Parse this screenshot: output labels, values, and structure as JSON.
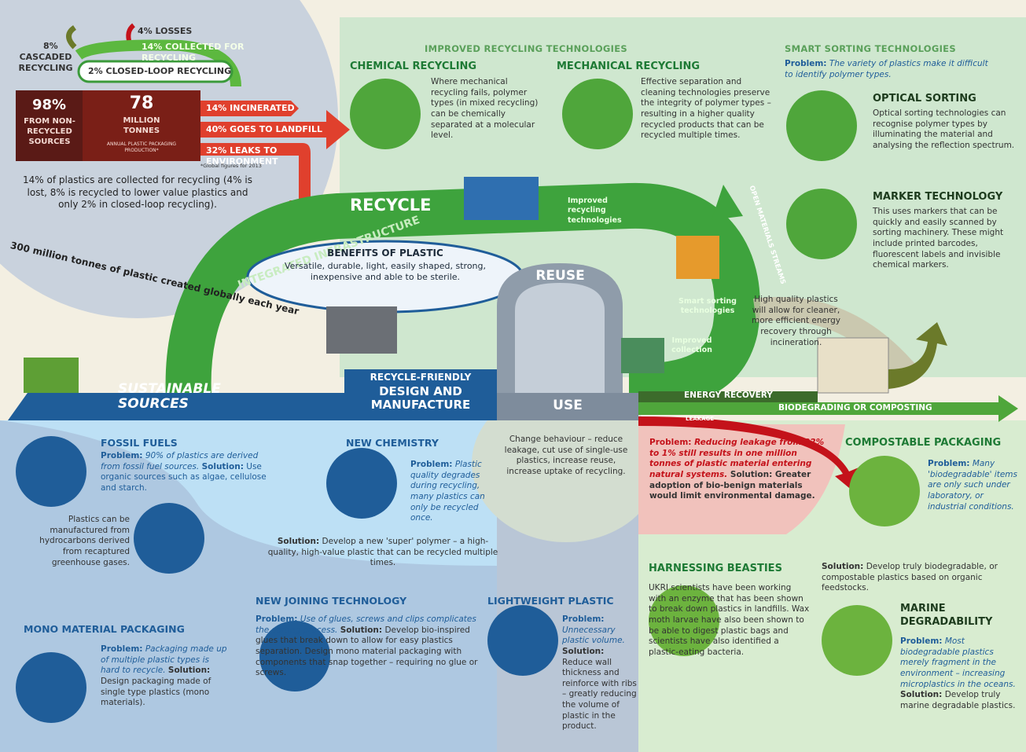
{
  "labels": {
    "problem": "Problem:",
    "solution": "Solution:"
  },
  "stats": {
    "losses": "4% LOSSES",
    "cascaded_pct": "8%",
    "cascaded_label": "CASCADED RECYCLING",
    "collected": "14% COLLECTED FOR RECYCLING",
    "closed_loop": "2% CLOSED-LOOP RECYCLING",
    "non_recycled_pct": "98%",
    "non_recycled_label": "FROM NON-RECYCLED SOURCES",
    "tonnes_value": "78",
    "tonnes_label": "MILLION TONNES",
    "tonnes_note": "ANNUAL PLASTIC PACKAGING PRODUCTION*",
    "incinerated": "14% INCINERATED",
    "landfill": "40% GOES TO LANDFILL",
    "leaks": "32% LEAKS TO ENVIRONMENT",
    "footnote": "*Global figures for 2013",
    "summary": "14% of plastics are collected for recycling (4% is lost, 8% is recycled to lower value plastics and only 2% in closed-loop recycling).",
    "created": "300 million tonnes of plastic created globally each year"
  },
  "technologies": {
    "title": "IMPROVED RECYCLING TECHNOLOGIES",
    "chemical": {
      "title": "CHEMICAL RECYCLING",
      "text": "Where mechanical recycling fails, polymer types (in mixed recycling) can be chemically separated at a molecular level."
    },
    "mechanical": {
      "title": "MECHANICAL RECYCLING",
      "text": "Effective separation and cleaning technologies preserve the integrity of polymer types – resulting in a higher quality recycled products that can be recycled multiple times."
    },
    "smart_sorting": {
      "title": "SMART SORTING TECHNOLOGIES",
      "problem": "The variety of plastics make it difficult to identify polymer types."
    },
    "optical": {
      "title": "OPTICAL SORTING",
      "text": "Optical sorting technologies can recognise polymer types by illuminating the material and analysing the reflection spectrum."
    },
    "marker": {
      "title": "MARKER TECHNOLOGY",
      "text": "This uses markers that can be quickly and easily scanned by sorting machinery. These might include printed barcodes, fluorescent labels and invisible chemical markers."
    }
  },
  "loop": {
    "recycle": "RECYCLE",
    "infrastructure": "INTEGRATED INFRASTRUCTURE",
    "improved_recycling": "Improved recycling technologies",
    "open_streams": "OPEN MATERIALS STREAMS",
    "smart_sorting": "Smart sorting technologies",
    "improved_collection": "Improved collection",
    "reuse": "REUSE",
    "benefits_title": "BENEFITS OF PLASTIC",
    "benefits_text": "Versatile, durable, light, easily shaped, strong, inexpensive and able to be sterile.",
    "energy_note": "High quality plastics will allow for cleaner, more efficient energy recovery through incineration."
  },
  "band": {
    "sustainable": "SUSTAINABLE SOURCES",
    "design_1": "RECYCLE-FRIENDLY",
    "design_2": "DESIGN AND MANUFACTURE",
    "use": "USE",
    "energy_recovery": "ENERGY RECOVERY",
    "biodegrading": "BIODEGRADING OR COMPOSTING",
    "leakage": "LEAKAGE"
  },
  "design": {
    "fossil": {
      "title": "FOSSIL FUELS",
      "problem": "90% of plastics are derived from fossil fuel sources.",
      "solution": "Use organic sources such as algae, cellulose and starch."
    },
    "hydrocarbons": "Plastics can be manufactured from hydrocarbons derived from recaptured greenhouse gases.",
    "chemistry": {
      "title": "NEW CHEMISTRY",
      "problem": "Plastic quality degrades during recycling, many plastics can only be recycled once.",
      "solution": "Develop a new 'super' polymer – a high-quality, high-value plastic that can be recycled multiple times."
    },
    "mono": {
      "title": "MONO MATERIAL PACKAGING",
      "problem": "Packaging made up of multiple plastic types is hard to recycle.",
      "solution": "Design packaging made of single type plastics (mono materials)."
    },
    "joining": {
      "title": "NEW JOINING TECHNOLOGY",
      "problem": "Use of glues, screws and clips complicates the sorting process.",
      "solution": "Develop bio-inspired glues that break down to allow for easy plastics separation. Design mono material packaging with components that snap together – requiring no glue or screws."
    },
    "lightweight": {
      "title": "LIGHTWEIGHT PLASTIC",
      "problem": "Unnecessary plastic volume.",
      "solution": "Reduce wall thickness and reinforce with ribs – greatly reducing the volume of plastic in the product."
    }
  },
  "use": {
    "behaviour": "Change behaviour – reduce leakage, cut use of single-use plastics, increase reuse, increase uptake of recycling."
  },
  "end_of_life": {
    "leakage": {
      "problem": "Reducing leakage from 32% to 1% still results in one million tonnes of plastic material entering natural systems.",
      "solution": "Greater adoption of bio-benign materials would limit environmental damage."
    },
    "compostable": {
      "title": "COMPOSTABLE PACKAGING",
      "problem": "Many 'biodegradable' items are only such under laboratory, or industrial conditions.",
      "solution": "Develop truly biodegradable, or compostable plastics based on organic feedstocks."
    },
    "beasties": {
      "title": "HARNESSING BEASTIES",
      "text": "UKRI scientists have been working with an enzyme that has been shown to break down plastics in landfills. Wax moth larvae have also been shown to be able to digest plastic bags and scientists have also identified a plastic-eating bacteria."
    },
    "marine": {
      "title": "MARINE DEGRADABILITY",
      "problem": "Most biodegradable plastics merely fragment in the environment – increasing microplastics in the oceans.",
      "solution": "Develop truly marine degradable plastics."
    }
  }
}
